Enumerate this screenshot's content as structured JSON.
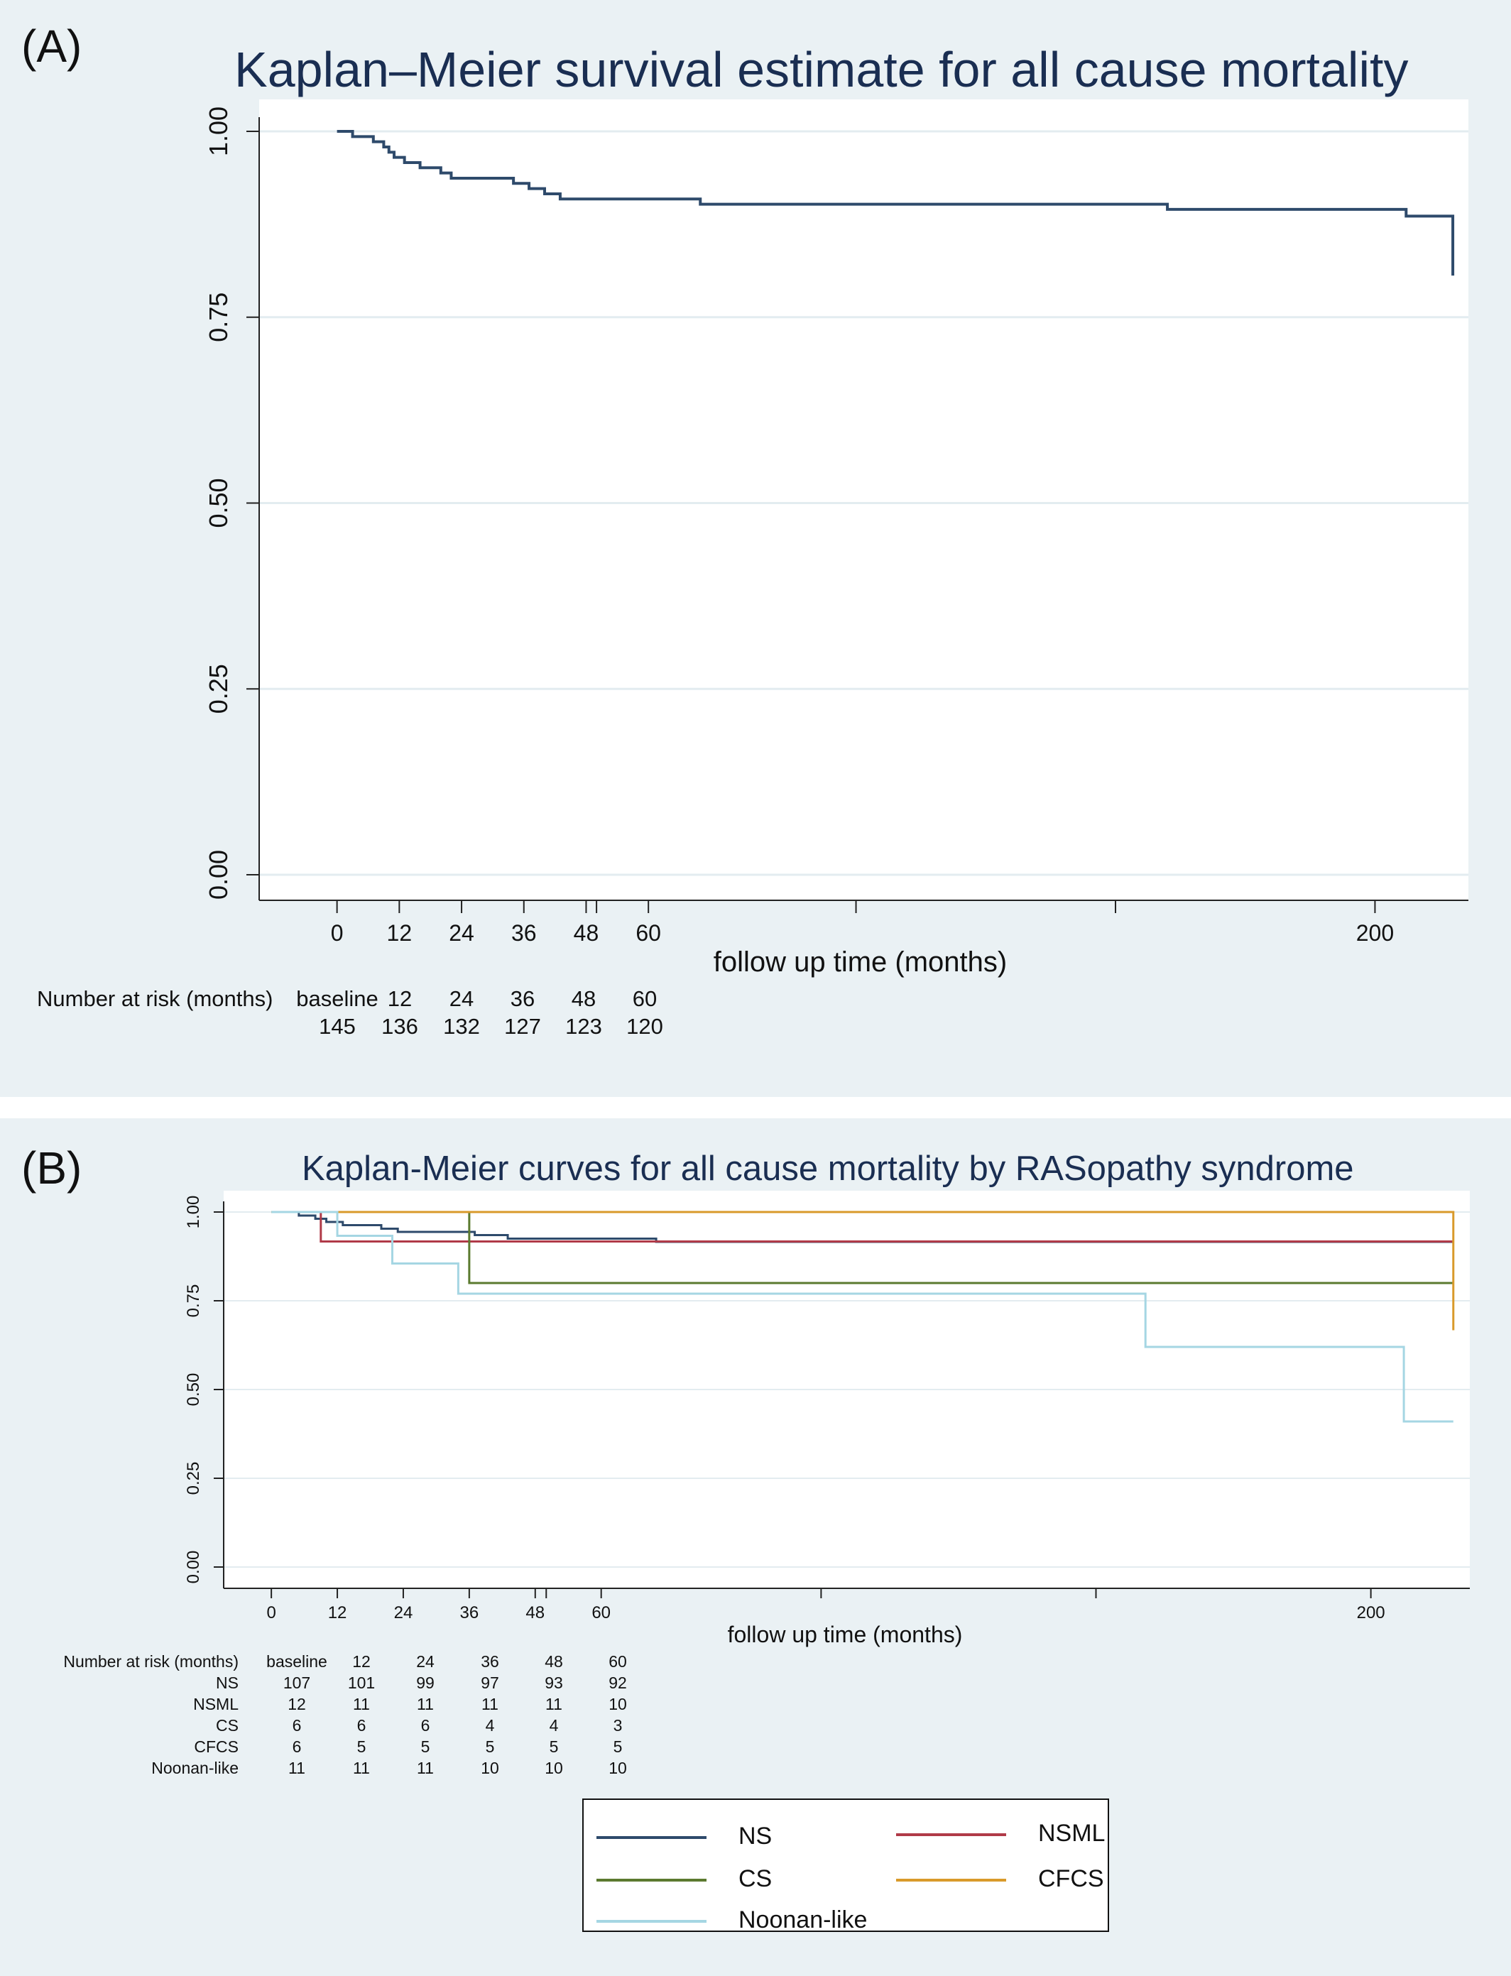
{
  "panelA": {
    "label": "(A)",
    "chart_data": {
      "type": "line",
      "title": "Kaplan–Meier survival estimate for all cause mortality",
      "xlabel": "follow up time (months)",
      "ylabel": "",
      "ylim": [
        0,
        1
      ],
      "xlim": [
        -15,
        218
      ],
      "y_ticks": [
        "0.00",
        "0.25",
        "0.50",
        "0.75",
        "1.00"
      ],
      "x_tick_labels": [
        0,
        12,
        24,
        36,
        48,
        60,
        200
      ],
      "x_tick_marks": [
        0,
        12,
        24,
        36,
        48,
        50,
        60,
        100,
        150,
        200
      ],
      "grid": true,
      "series": [
        {
          "color": "#2e4a6b",
          "step": [
            [
              0,
              1.0
            ],
            [
              3,
              0.993
            ],
            [
              7,
              0.986
            ],
            [
              9,
              0.979
            ],
            [
              10,
              0.972
            ],
            [
              11,
              0.965
            ],
            [
              13,
              0.958
            ],
            [
              16,
              0.951
            ],
            [
              20,
              0.944
            ],
            [
              22,
              0.937
            ],
            [
              34,
              0.93
            ],
            [
              37,
              0.923
            ],
            [
              40,
              0.916
            ],
            [
              43,
              0.909
            ],
            [
              70,
              0.902
            ],
            [
              160,
              0.895
            ],
            [
              206,
              0.886
            ],
            [
              215,
              0.806
            ]
          ]
        }
      ]
    },
    "risk_table": {
      "label": "Number at risk (months)",
      "headers": [
        "baseline",
        "12",
        "24",
        "36",
        "48",
        "60"
      ],
      "values": [
        "145",
        "136",
        "132",
        "127",
        "123",
        "120"
      ]
    }
  },
  "panelB": {
    "label": "(B)",
    "chart_data": {
      "type": "line",
      "title": "Kaplan-Meier curves for all cause mortality by RASopathy syndrome",
      "xlabel": "follow up time (months)",
      "ylabel": "",
      "ylim": [
        0,
        1
      ],
      "xlim": [
        -15,
        218
      ],
      "y_ticks": [
        "0.00",
        "0.25",
        "0.50",
        "0.75",
        "1.00"
      ],
      "x_tick_labels": [
        0,
        12,
        24,
        36,
        48,
        60,
        200
      ],
      "x_tick_marks": [
        0,
        12,
        24,
        36,
        48,
        50,
        60,
        100,
        150,
        200
      ],
      "grid": true,
      "legend_position": "bottom",
      "series": [
        {
          "name": "NS",
          "color": "#2e4a6b",
          "step": [
            [
              0,
              1.0
            ],
            [
              5,
              0.99
            ],
            [
              8,
              0.981
            ],
            [
              10,
              0.972
            ],
            [
              13,
              0.963
            ],
            [
              20,
              0.953
            ],
            [
              23,
              0.944
            ],
            [
              37,
              0.935
            ],
            [
              43,
              0.925
            ],
            [
              70,
              0.916
            ],
            [
              215,
              0.916
            ]
          ]
        },
        {
          "name": "NSML",
          "color": "#b03a48",
          "step": [
            [
              0,
              1.0
            ],
            [
              9,
              0.917
            ],
            [
              215,
              0.917
            ]
          ]
        },
        {
          "name": "CS",
          "color": "#5b7a2f",
          "step": [
            [
              0,
              1.0
            ],
            [
              36,
              0.8
            ],
            [
              215,
              0.8
            ]
          ]
        },
        {
          "name": "CFCS",
          "color": "#d99a2b",
          "step": [
            [
              0,
              1.0
            ],
            [
              215,
              0.667
            ]
          ]
        },
        {
          "name": "Noonan-like",
          "color": "#a5d6e3",
          "step": [
            [
              0,
              1.0
            ],
            [
              12,
              0.933
            ],
            [
              22,
              0.855
            ],
            [
              34,
              0.77
            ],
            [
              159,
              0.62
            ],
            [
              206,
              0.41
            ],
            [
              215,
              0.41
            ]
          ]
        }
      ]
    },
    "risk_table": {
      "label": "Number at risk (months)",
      "headers": [
        "baseline",
        "12",
        "24",
        "36",
        "48",
        "60"
      ],
      "rows": [
        {
          "name": "NS",
          "values": [
            "107",
            "101",
            "99",
            "97",
            "93",
            "92"
          ]
        },
        {
          "name": "NSML",
          "values": [
            "12",
            "11",
            "11",
            "11",
            "11",
            "10"
          ]
        },
        {
          "name": "CS",
          "values": [
            "6",
            "6",
            "6",
            "4",
            "4",
            "3"
          ]
        },
        {
          "name": "CFCS",
          "values": [
            "6",
            "5",
            "5",
            "5",
            "5",
            "5"
          ]
        },
        {
          "name": "Noonan-like",
          "values": [
            "11",
            "11",
            "11",
            "10",
            "10",
            "10"
          ]
        }
      ]
    },
    "legend": [
      {
        "name": "NS",
        "color": "#2e4a6b"
      },
      {
        "name": "NSML",
        "color": "#b03a48"
      },
      {
        "name": "CS",
        "color": "#5b7a2f"
      },
      {
        "name": "CFCS",
        "color": "#d99a2b"
      },
      {
        "name": "Noonan-like",
        "color": "#a5d6e3"
      }
    ]
  }
}
